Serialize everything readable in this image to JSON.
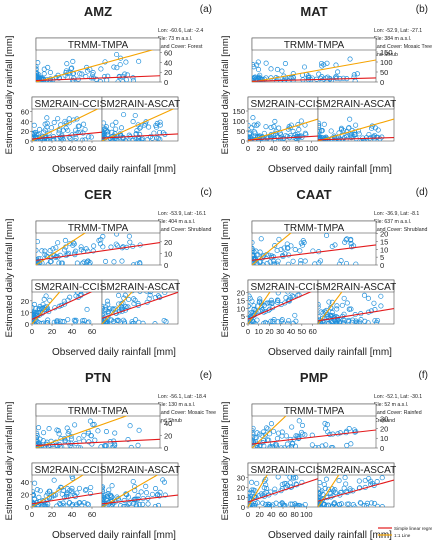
{
  "figure": {
    "legend": {
      "regression_label": "Simple linear regression",
      "line11_label": "1:1 Line",
      "regression_color": "#e31a1c",
      "line11_color": "#f5a300"
    },
    "point_color": "#1f8fdb",
    "y_axis_title": "Estimated daily rainfall [mm]",
    "x_axis_title": "Observed daily rainfall [mm]"
  },
  "chart_data": [
    {
      "type": "scatter",
      "title": "AMZ",
      "letter": "(a)",
      "info": [
        "Lon: -60.6, Lat: -2.4",
        "Ele: 73 m a.s.l.",
        "Land Cover: Forest"
      ],
      "xlim": [
        0,
        70
      ],
      "xticks": [
        "0",
        "10",
        "20",
        "30",
        "40",
        "50",
        "60"
      ],
      "panels": [
        {
          "name": "TRMM-TMPA",
          "ylim": [
            0,
            90
          ],
          "yticks": [
            "0",
            "20",
            "40",
            "60",
            "80"
          ],
          "regression": {
            "intercept": 3,
            "slope": 0.14
          },
          "points": []
        },
        {
          "name": "SM2RAIN-CCI",
          "ylim": [
            0,
            90
          ],
          "yticks": [
            "0",
            "20",
            "40",
            "60",
            "80"
          ],
          "regression": {
            "intercept": 4,
            "slope": 0.2
          },
          "points": []
        },
        {
          "name": "SM2RAIN-ASCAT",
          "ylim": [
            0,
            90
          ],
          "yticks": [],
          "regression": {
            "intercept": 6,
            "slope": 0.12
          },
          "points": []
        }
      ]
    },
    {
      "type": "scatter",
      "title": "MAT",
      "letter": "(b)",
      "info": [
        "Lon: -52.9, Lat: -27.1",
        "Ele: 384 m a.s.l.",
        "Land Cover: Mosaic Tree",
        "and Shrub"
      ],
      "xlim": [
        0,
        110
      ],
      "xticks": [
        "0",
        "20",
        "40",
        "60",
        "80",
        "100"
      ],
      "panels": [
        {
          "name": "TRMM-TMPA",
          "ylim": [
            0,
            220
          ],
          "yticks": [
            "0",
            "50",
            "100",
            "150",
            "200"
          ],
          "regression": {
            "intercept": 4,
            "slope": 0.15
          },
          "points": []
        },
        {
          "name": "SM2RAIN-CCI",
          "ylim": [
            0,
            220
          ],
          "yticks": [
            "0",
            "50",
            "100",
            "150",
            "200"
          ],
          "regression": {
            "intercept": 5,
            "slope": 0.18
          },
          "points": []
        },
        {
          "name": "SM2RAIN-ASCAT",
          "ylim": [
            0,
            220
          ],
          "yticks": [],
          "regression": {
            "intercept": 6,
            "slope": 0.1
          },
          "points": []
        }
      ]
    },
    {
      "type": "scatter",
      "title": "CER",
      "letter": "(c)",
      "info": [
        "Lon: -53.9, Lat: -16.1",
        "Ele: 404 m a.s.l.",
        "Land Cover: Shrubland"
      ],
      "xlim": [
        0,
        70
      ],
      "xticks": [
        "0",
        "20",
        "40",
        "60"
      ],
      "panels": [
        {
          "name": "TRMM-TMPA",
          "ylim": [
            0,
            38
          ],
          "yticks": [
            "0",
            "10",
            "20",
            "30"
          ],
          "regression": {
            "intercept": 4,
            "slope": 0.22
          },
          "points": []
        },
        {
          "name": "SM2RAIN-CCI",
          "ylim": [
            0,
            38
          ],
          "yticks": [
            "0",
            "10",
            "20",
            "30"
          ],
          "regression": {
            "intercept": 4,
            "slope": 0.4
          },
          "points": []
        },
        {
          "name": "SM2RAIN-ASCAT",
          "ylim": [
            0,
            38
          ],
          "yticks": [],
          "regression": {
            "intercept": 5,
            "slope": 0.32
          },
          "points": []
        }
      ]
    },
    {
      "type": "scatter",
      "title": "CAAT",
      "letter": "(d)",
      "info": [
        "Lon: -36.9, Lat: -8.1",
        "Ele: 637 m a.s.l.",
        "Land Cover: Shrubland"
      ],
      "xlim": [
        0,
        65
      ],
      "xticks": [
        "0",
        "10",
        "20",
        "30",
        "40",
        "50",
        "60"
      ],
      "panels": [
        {
          "name": "TRMM-TMPA",
          "ylim": [
            0,
            28
          ],
          "yticks": [
            "0",
            "5",
            "10",
            "15",
            "20",
            "25"
          ],
          "regression": {
            "intercept": 3,
            "slope": 0.15
          },
          "points": []
        },
        {
          "name": "SM2RAIN-CCI",
          "ylim": [
            0,
            28
          ],
          "yticks": [
            "0",
            "5",
            "10",
            "15",
            "20",
            "25"
          ],
          "regression": {
            "intercept": 3,
            "slope": 0.3
          },
          "points": []
        },
        {
          "name": "SM2RAIN-ASCAT",
          "ylim": [
            0,
            28
          ],
          "yticks": [],
          "regression": {
            "intercept": 2,
            "slope": 0.12
          },
          "points": []
        }
      ]
    },
    {
      "type": "scatter",
      "title": "PTN",
      "letter": "(e)",
      "info": [
        "Lon: -56.1, Lat: -18.4",
        "Ele: 130 m a.s.l.",
        "Land Cover: Mosaic Tree",
        "and Shrub"
      ],
      "xlim": [
        0,
        70
      ],
      "xticks": [
        "0",
        "20",
        "40",
        "60"
      ],
      "panels": [
        {
          "name": "TRMM-TMPA",
          "ylim": [
            0,
            70
          ],
          "yticks": [
            "0",
            "20",
            "40",
            "60"
          ],
          "regression": {
            "intercept": 4,
            "slope": 0.14
          },
          "points": []
        },
        {
          "name": "SM2RAIN-CCI",
          "ylim": [
            0,
            70
          ],
          "yticks": [
            "0",
            "20",
            "40",
            "60"
          ],
          "regression": {
            "intercept": 5,
            "slope": 0.25
          },
          "points": []
        },
        {
          "name": "SM2RAIN-ASCAT",
          "ylim": [
            0,
            70
          ],
          "yticks": [],
          "regression": {
            "intercept": 5,
            "slope": 0.2
          },
          "points": []
        }
      ]
    },
    {
      "type": "scatter",
      "title": "PMP",
      "letter": "(f)",
      "info": [
        "Lon: -52.1, Lat: -30.1",
        "Ele: 52 m a.s.l.",
        "Land Cover: Rainfed",
        "Cropland"
      ],
      "xlim": [
        0,
        120
      ],
      "xticks": [
        "0",
        "20",
        "40",
        "60",
        "80",
        "100"
      ],
      "panels": [
        {
          "name": "TRMM-TMPA",
          "ylim": [
            0,
            45
          ],
          "yticks": [
            "0",
            "10",
            "20",
            "30",
            "40"
          ],
          "regression": {
            "intercept": 4,
            "slope": 0.12
          },
          "points": []
        },
        {
          "name": "SM2RAIN-CCI",
          "ylim": [
            0,
            45
          ],
          "yticks": [
            "0",
            "10",
            "20",
            "30",
            "40"
          ],
          "regression": {
            "intercept": 5,
            "slope": 0.2
          },
          "points": []
        },
        {
          "name": "SM2RAIN-ASCAT",
          "ylim": [
            0,
            45
          ],
          "yticks": [],
          "regression": {
            "intercept": 6,
            "slope": 0.18
          },
          "points": []
        }
      ]
    }
  ]
}
